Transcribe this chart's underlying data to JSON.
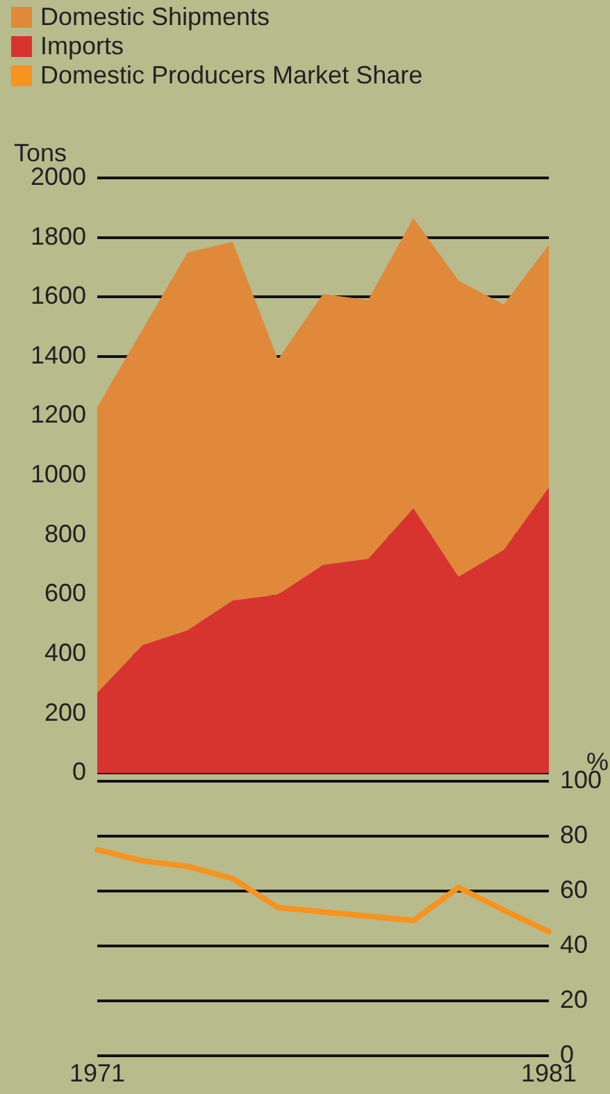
{
  "chart_data": [
    {
      "type": "area",
      "ylabel": "Tons",
      "categories": [
        "1971",
        null,
        null,
        null,
        null,
        null,
        null,
        null,
        null,
        null,
        "1981"
      ],
      "tick_labels": "y",
      "grid": "y",
      "legend": "top",
      "marker": "none",
      "series": [
        {
          "name": "Domestic Shipments",
          "color": "#e0893a",
          "values": [
            1230,
            1490,
            1750,
            1785,
            1390,
            1610,
            1590,
            1865,
            1655,
            1575,
            1775
          ]
        },
        {
          "name": "Imports",
          "color": "#d8342f",
          "values": [
            270,
            430,
            480,
            580,
            600,
            700,
            720,
            890,
            660,
            750,
            960
          ]
        }
      ],
      "ylim": [
        0,
        2000
      ],
      "yticks": [
        0,
        200,
        400,
        600,
        800,
        1000,
        1200,
        1400,
        1600,
        1800,
        2000
      ]
    },
    {
      "type": "line",
      "y2label": "%",
      "categories": [
        "1971",
        null,
        null,
        null,
        null,
        null,
        null,
        null,
        null,
        null,
        "1981"
      ],
      "grid": "y",
      "legend": "top",
      "marker": "none",
      "line_style": "solid",
      "series": [
        {
          "name": "Domestic Producers Market Share",
          "color": "#f7931e",
          "axis": "y2",
          "values": [
            75,
            71,
            69,
            64.5,
            54,
            52.4,
            50.8,
            49.3,
            61.3,
            53,
            45.2
          ]
        }
      ],
      "y2lim": [
        0,
        100
      ],
      "y2ticks": [
        0,
        20,
        40,
        60,
        80,
        100
      ]
    }
  ]
}
